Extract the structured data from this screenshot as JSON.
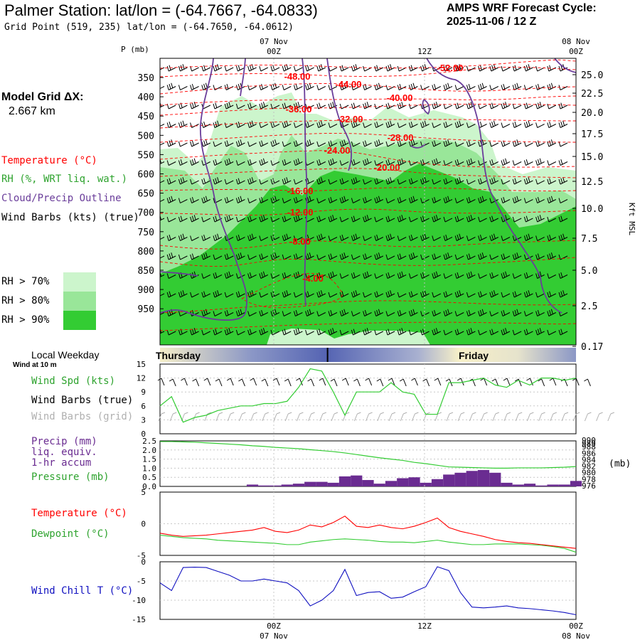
{
  "header": {
    "title": "Palmer Station:  lat/lon = (-64.7667, -64.0833)",
    "grid_point": "Grid Point (519, 235) lat/lon = (-64.7650, -64.0612)",
    "cycle_line1": "AMPS WRF Forecast Cycle:",
    "cycle_line2": "2025-11-06 / 12  Z"
  },
  "legend": {
    "model_grid_title": "Model Grid ΔX:",
    "model_grid_value": "2.667 km",
    "temperature": "Temperature (°C)",
    "rh": "RH (%, WRT liq. wat.)",
    "cloud": "Cloud/Precip Outline",
    "wind_barbs": "Wind Barbs (kts) (true)",
    "rh70": "RH > 70%",
    "rh80": "RH > 80%",
    "rh90": "RH > 90%",
    "local_weekday": "Local Weekday",
    "wind_at_10m": "Wind at 10 m",
    "wind_spd": "Wind Spd (kts)",
    "barbs_true": "Wind Barbs (true)",
    "barbs_grid": "Wind Barbs (grid)",
    "precip": "Precip (mm)",
    "liq_equiv": "liq. equiv.",
    "accum": "1-hr accum",
    "pressure": "Pressure (mb)",
    "temp2": "Temperature (°C)",
    "dewpoint": "Dewpoint (°C)",
    "windchill": "Wind Chill T (°C)"
  },
  "colors": {
    "temperature": "#ff0000",
    "rh_label": "#2ea32e",
    "cloud": "#6a3d9a",
    "rh70": "#ccf5cc",
    "rh80": "#99e699",
    "rh90": "#33cc33",
    "precip": "#6a2c91",
    "wind_speed": "#33cc33",
    "dewpoint": "#33cc33",
    "windchill": "#1010c0",
    "grid_barbs": "#b0b0b0"
  },
  "chart_data": [
    {
      "type": "contour",
      "name": "cross-section",
      "xlabel_top": [
        "07 Nov",
        "00Z",
        "12Z",
        "08 Nov",
        "00Z"
      ],
      "ylabel_left": "P (mb)",
      "ylabel_right": "Kft MSL",
      "p_ticks": [
        "350",
        "400",
        "450",
        "500",
        "550",
        "600",
        "650",
        "700",
        "750",
        "800",
        "850",
        "900",
        "950"
      ],
      "kft_ticks": [
        "25.0",
        "22.5",
        "20.0",
        "17.5",
        "15.0",
        "12.5",
        "10.0",
        "7.5",
        "5.0",
        "2.5",
        "0.17"
      ],
      "isotherm_labels": [
        "-48.00",
        "-52.00",
        "-44.00",
        "-40.00",
        "-36.00",
        "-32.00",
        "-28.00",
        "-24.00",
        "-20.00",
        "-16.00",
        "-12.00",
        "-8.00",
        "-4.00"
      ],
      "x_range_hours": [
        0,
        36
      ],
      "time_marks": {
        "00Z_07Nov": 12,
        "12Z": 24,
        "00Z_08Nov": 36
      }
    },
    {
      "type": "band",
      "name": "local-weekday",
      "labels": [
        "Thursday",
        "Friday"
      ],
      "divider_hour": 14.5
    },
    {
      "type": "line",
      "name": "wind-speed",
      "ylim": [
        0,
        15
      ],
      "yticks": [
        "0",
        "3",
        "6",
        "9",
        "12",
        "15"
      ],
      "x": [
        0,
        1,
        2,
        3,
        4,
        5,
        6,
        7,
        8,
        9,
        10,
        11,
        12,
        13,
        14,
        15,
        16,
        17,
        18,
        19,
        20,
        21,
        22,
        23,
        24,
        25,
        26,
        27,
        28,
        29,
        30,
        31,
        32,
        33,
        34,
        35,
        36
      ],
      "values": [
        6,
        8,
        2.5,
        3.5,
        4,
        5,
        5.5,
        6,
        6,
        6.5,
        6.5,
        7,
        10,
        14,
        13.5,
        9,
        4,
        9,
        9,
        9,
        11,
        9,
        8.5,
        4.2,
        4.2,
        11,
        11,
        11.5,
        12,
        10.5,
        10,
        11.5,
        10.5,
        12,
        12,
        11.5,
        12
      ]
    },
    {
      "type": "bar+line",
      "name": "precip-pressure",
      "ylim_precip": [
        0,
        2.5
      ],
      "yticks_precip": [
        "0.0",
        "0.5",
        "1.0",
        "1.5",
        "2.0",
        "2.5"
      ],
      "yticks_pressure": [
        "976",
        "978",
        "980",
        "982",
        "984",
        "986",
        "988",
        "989",
        "990"
      ],
      "ylabel_right": "(mb)",
      "x": [
        0,
        1,
        2,
        3,
        4,
        5,
        6,
        7,
        8,
        9,
        10,
        11,
        12,
        13,
        14,
        15,
        16,
        17,
        18,
        19,
        20,
        21,
        22,
        23,
        24,
        25,
        26,
        27,
        28,
        29,
        30,
        31,
        32,
        33,
        34,
        35,
        36
      ],
      "precip": [
        0,
        0,
        0,
        0,
        0,
        0,
        0,
        0,
        0.1,
        0.05,
        0.05,
        0.1,
        0.15,
        0.25,
        0.25,
        0.2,
        0.55,
        0.6,
        0.35,
        0.15,
        0.3,
        0.45,
        0.5,
        0.2,
        0.4,
        0.65,
        0.75,
        0.85,
        0.9,
        0.75,
        0.2,
        0.1,
        0.15,
        0.05,
        0.1,
        0.1,
        0.3
      ],
      "pressure": [
        989.8,
        989.8,
        989.7,
        989.6,
        989.4,
        989.2,
        989.0,
        988.8,
        988.5,
        988.3,
        988.0,
        987.8,
        987.6,
        987.3,
        987.0,
        986.7,
        986.3,
        985.8,
        985.3,
        984.8,
        984.4,
        984.0,
        983.4,
        983.0,
        982.5,
        982.0,
        981.9,
        981.8,
        981.7,
        981.6,
        981.6,
        981.7,
        981.7,
        981.7,
        981.8,
        981.9,
        982.1
      ]
    },
    {
      "type": "line",
      "name": "temperature-dewpoint",
      "ylim": [
        -5,
        5
      ],
      "yticks": [
        "-5",
        "0",
        "5"
      ],
      "x": [
        0,
        1,
        2,
        3,
        4,
        5,
        6,
        7,
        8,
        9,
        10,
        11,
        12,
        13,
        14,
        15,
        16,
        17,
        18,
        19,
        20,
        21,
        22,
        23,
        24,
        25,
        26,
        27,
        28,
        29,
        30,
        31,
        32,
        33,
        34,
        35,
        36
      ],
      "series": [
        {
          "name": "Temperature",
          "values": [
            -1.5,
            -1.8,
            -2.0,
            -1.9,
            -1.8,
            -1.6,
            -1.4,
            -1.2,
            -1.0,
            -0.6,
            -1.2,
            -1.4,
            -1.0,
            -0.2,
            -0.5,
            0.2,
            1.2,
            -0.4,
            -0.6,
            -0.2,
            -0.6,
            -0.8,
            -0.4,
            0.2,
            0.9,
            -0.6,
            -1.2,
            -1.6,
            -2.0,
            -2.5,
            -2.8,
            -3.0,
            -3.1,
            -3.3,
            -3.5,
            -3.7,
            -3.9
          ]
        },
        {
          "name": "Dewpoint",
          "values": [
            -1.8,
            -2.0,
            -2.2,
            -2.3,
            -2.4,
            -2.6,
            -2.7,
            -2.8,
            -2.9,
            -3.0,
            -3.1,
            -3.3,
            -3.3,
            -2.9,
            -2.7,
            -2.5,
            -2.4,
            -2.5,
            -2.6,
            -2.8,
            -2.9,
            -2.9,
            -3.0,
            -2.8,
            -2.6,
            -2.9,
            -3.1,
            -3.3,
            -3.3,
            -3.2,
            -3.2,
            -3.2,
            -3.3,
            -3.4,
            -3.6,
            -3.9,
            -4.5
          ]
        }
      ]
    },
    {
      "type": "line",
      "name": "wind-chill",
      "ylim": [
        -15,
        0
      ],
      "yticks": [
        "0",
        "-5",
        "-10",
        "-15"
      ],
      "x": [
        0,
        1,
        2,
        3,
        4,
        5,
        6,
        7,
        8,
        9,
        10,
        11,
        12,
        13,
        14,
        15,
        16,
        17,
        18,
        19,
        20,
        21,
        22,
        23,
        24,
        25,
        26,
        27,
        28,
        29,
        30,
        31,
        32,
        33,
        34,
        35,
        36
      ],
      "values": [
        -5.5,
        -7.5,
        -1.5,
        -1.4,
        -1.5,
        -2.5,
        -3.5,
        -5,
        -5,
        -4.5,
        -5,
        -5.5,
        -7.5,
        -11.5,
        -10,
        -7.5,
        -2,
        -8.8,
        -8,
        -7.8,
        -9.5,
        -9.2,
        -7.8,
        -6.5,
        -1.3,
        -2.3,
        -8,
        -11.8,
        -12,
        -11.8,
        -11.5,
        -12,
        -12.2,
        -12.5,
        -12.8,
        -13.2,
        -13.8
      ]
    }
  ]
}
